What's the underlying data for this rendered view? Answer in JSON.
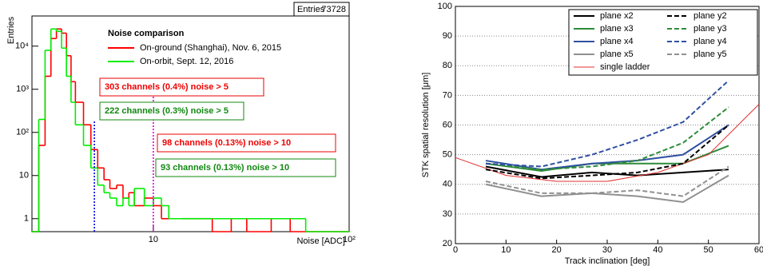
{
  "chart_data": [
    {
      "type": "histogram",
      "ylabel": "Entries",
      "xlabel": "Noise [ADC]",
      "stats": {
        "label": "Entries",
        "value": 73728
      },
      "legend_title": "Noise comparison",
      "xlog": true,
      "ylog": true,
      "xlim": [
        2.4,
        100
      ],
      "ylim": [
        0.5,
        50000
      ],
      "xticks": [
        10,
        {
          "value": 100,
          "label": "10²"
        }
      ],
      "yticks": [
        1,
        10,
        {
          "value": 100,
          "label": "10²"
        },
        {
          "value": 1000,
          "label": "10³"
        },
        {
          "value": 10000,
          "label": "10⁴"
        }
      ],
      "bins": [
        2.4,
        2.6,
        2.8,
        3.0,
        3.2,
        3.4,
        3.6,
        3.8,
        4.0,
        4.4,
        4.8,
        5.2,
        5.6,
        6.0,
        6.5,
        7,
        7.5,
        8,
        9,
        10,
        11,
        12,
        14,
        16,
        18,
        20,
        25,
        30,
        40,
        50,
        60,
        80,
        100
      ],
      "series": [
        {
          "name": "On-ground (Shanghai), Nov. 6, 2015",
          "color": "#ff0000",
          "values": [
            0,
            50,
            2000,
            15000,
            25000,
            20000,
            6000,
            1500,
            500,
            150,
            40,
            15,
            8,
            5,
            6,
            3,
            4,
            2,
            3,
            2,
            1,
            1,
            1,
            1,
            1,
            0,
            1,
            0,
            1,
            0,
            0,
            0
          ]
        },
        {
          "name": "On-orbit, Sept. 12, 2016",
          "color": "#00ee00",
          "values": [
            0,
            200,
            8000,
            25000,
            22000,
            9000,
            2000,
            500,
            150,
            50,
            15,
            6,
            4,
            3,
            2,
            3,
            2,
            5,
            2,
            3,
            2,
            1,
            1,
            1,
            1,
            1,
            1,
            1,
            1,
            1,
            0,
            0
          ]
        }
      ],
      "vlines": [
        {
          "x": 5,
          "top": 180,
          "color": "#0000dd"
        },
        {
          "x": 10,
          "top": 800,
          "color": "#dd00dd"
        }
      ],
      "annotations": [
        {
          "text": "303 channels (0.4%) noise > 5",
          "color": "#ee0000"
        },
        {
          "text": "222 channels (0.3%) noise > 5",
          "color": "#118811"
        },
        {
          "text": "98 channels (0.13%) noise > 10",
          "color": "#ee0000"
        },
        {
          "text": "93 channels (0.13%)  noise > 10",
          "color": "#118811"
        }
      ]
    },
    {
      "type": "line",
      "xlabel": "Track inclination [deg]",
      "ylabel": "STK spatial resolution [μm]",
      "xlim": [
        0,
        60
      ],
      "ylim": [
        20,
        100
      ],
      "xticks": [
        0,
        10,
        20,
        30,
        40,
        50,
        60
      ],
      "yticks": [
        20,
        30,
        40,
        50,
        60,
        70,
        80,
        90,
        100
      ],
      "grid": true,
      "series": [
        {
          "name": "plane x2",
          "color": "#000000",
          "dashed": false,
          "x": [
            6,
            17,
            27,
            36,
            45,
            54
          ],
          "values": [
            46,
            42.5,
            44,
            43,
            44,
            45
          ]
        },
        {
          "name": "plane x3",
          "color": "#2e8b3a",
          "dashed": false,
          "x": [
            6,
            17,
            27,
            36,
            45,
            54
          ],
          "values": [
            47,
            44.5,
            47,
            47,
            47,
            53
          ]
        },
        {
          "name": "plane x4",
          "color": "#3050a0",
          "dashed": false,
          "x": [
            6,
            17,
            27,
            36,
            45,
            54
          ],
          "values": [
            48,
            45,
            47,
            48,
            50,
            60
          ]
        },
        {
          "name": "plane x5",
          "color": "#909090",
          "dashed": false,
          "x": [
            6,
            17,
            27,
            36,
            45,
            54
          ],
          "values": [
            40,
            36,
            37,
            36,
            34,
            43
          ]
        },
        {
          "name": "single ladder",
          "color": "#e03030",
          "dashed": false,
          "x": [
            0,
            10,
            20,
            30,
            40,
            50,
            60
          ],
          "values": [
            49,
            43,
            41,
            41,
            44,
            50,
            67
          ]
        },
        {
          "name": "plane y2",
          "color": "#000000",
          "dashed": true,
          "x": [
            6,
            17,
            27,
            36,
            45,
            54
          ],
          "values": [
            45,
            42,
            43,
            44,
            47,
            60
          ]
        },
        {
          "name": "plane y3",
          "color": "#2e8b3a",
          "dashed": true,
          "x": [
            6,
            17,
            27,
            36,
            45,
            54
          ],
          "values": [
            47,
            45,
            46,
            48,
            54,
            66
          ]
        },
        {
          "name": "plane y4",
          "color": "#3050a0",
          "dashed": true,
          "x": [
            6,
            17,
            27,
            36,
            45,
            54
          ],
          "values": [
            47,
            46,
            50,
            55,
            61,
            75
          ]
        },
        {
          "name": "plane y5",
          "color": "#909090",
          "dashed": true,
          "x": [
            6,
            17,
            27,
            36,
            45,
            54
          ],
          "values": [
            41,
            37,
            37,
            38,
            36,
            46
          ]
        }
      ]
    }
  ]
}
